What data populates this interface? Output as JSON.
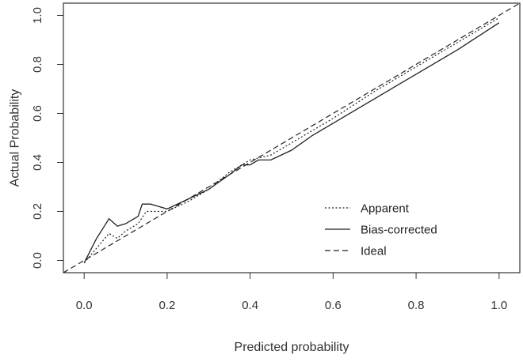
{
  "chart_data": {
    "type": "line",
    "title": "",
    "xlabel": "Predicted probability",
    "ylabel": "Actual Probability",
    "xlim": [
      -0.05,
      1.05
    ],
    "ylim": [
      -0.05,
      1.05
    ],
    "xticks": [
      "0.0",
      "0.2",
      "0.4",
      "0.6",
      "0.8",
      "1.0"
    ],
    "yticks": [
      "0.0",
      "0.2",
      "0.4",
      "0.6",
      "0.8",
      "1.0"
    ],
    "grid": false,
    "legend_position": "bottom-right",
    "series": [
      {
        "name": "Apparent",
        "style": "dotted",
        "x": [
          0.0,
          0.03,
          0.06,
          0.08,
          0.1,
          0.13,
          0.15,
          0.18,
          0.2,
          0.25,
          0.3,
          0.35,
          0.38,
          0.4,
          0.45,
          0.5,
          0.6,
          0.7,
          0.8,
          0.9,
          1.0
        ],
        "y": [
          -0.01,
          0.05,
          0.11,
          0.09,
          0.12,
          0.15,
          0.2,
          0.2,
          0.2,
          0.24,
          0.29,
          0.36,
          0.39,
          0.41,
          0.43,
          0.48,
          0.58,
          0.69,
          0.79,
          0.89,
          0.99
        ]
      },
      {
        "name": "Bias-corrected",
        "style": "solid",
        "x": [
          0.0,
          0.03,
          0.06,
          0.08,
          0.1,
          0.13,
          0.14,
          0.16,
          0.18,
          0.2,
          0.25,
          0.3,
          0.35,
          0.38,
          0.4,
          0.42,
          0.45,
          0.5,
          0.55,
          0.6,
          0.7,
          0.8,
          0.9,
          1.0
        ],
        "y": [
          -0.01,
          0.09,
          0.17,
          0.14,
          0.15,
          0.18,
          0.23,
          0.23,
          0.22,
          0.21,
          0.25,
          0.29,
          0.35,
          0.39,
          0.39,
          0.41,
          0.41,
          0.45,
          0.51,
          0.56,
          0.66,
          0.76,
          0.86,
          0.97
        ]
      },
      {
        "name": "Ideal",
        "style": "dashed",
        "x": [
          -0.05,
          1.05
        ],
        "y": [
          -0.05,
          1.05
        ]
      }
    ]
  }
}
